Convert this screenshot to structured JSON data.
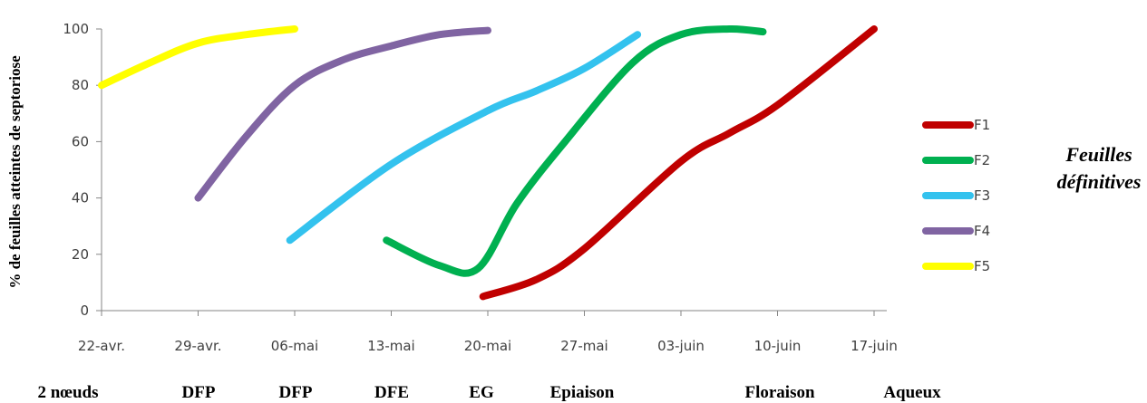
{
  "chart_data": {
    "type": "line",
    "ylabel": "% de feuilles atteintes de septoriose",
    "ylim": [
      0,
      100
    ],
    "yticks": [
      0,
      20,
      40,
      60,
      80,
      100
    ],
    "categories": [
      "22-avr.",
      "29-avr.",
      "06-mai",
      "13-mai",
      "20-mai",
      "27-mai",
      "03-juin",
      "10-juin",
      "17-juin"
    ],
    "stages": [
      "2 nœuds",
      "DFP",
      "DFP",
      "DFE",
      "EG",
      "Epiaison",
      "Floraison",
      "Aqueux"
    ],
    "legend_title": [
      "Feuilles",
      "définitives"
    ],
    "legend_position": "right",
    "series": [
      {
        "name": "F1",
        "color": "#C00000",
        "points": [
          [
            3.95,
            5
          ],
          [
            4.5,
            11
          ],
          [
            5.0,
            22
          ],
          [
            6.0,
            53
          ],
          [
            6.5,
            63
          ],
          [
            7.0,
            73
          ],
          [
            8.0,
            100
          ]
        ]
      },
      {
        "name": "F2",
        "color": "#00B050",
        "points": [
          [
            2.95,
            25
          ],
          [
            3.5,
            16
          ],
          [
            3.9,
            15
          ],
          [
            4.3,
            38
          ],
          [
            4.8,
            60
          ],
          [
            5.5,
            88
          ],
          [
            6.0,
            98
          ],
          [
            6.5,
            100
          ],
          [
            6.85,
            99
          ]
        ]
      },
      {
        "name": "F3",
        "color": "#33C2EE",
        "points": [
          [
            1.95,
            25
          ],
          [
            3.0,
            52
          ],
          [
            4.0,
            71
          ],
          [
            4.5,
            78
          ],
          [
            5.0,
            86
          ],
          [
            5.55,
            98
          ]
        ]
      },
      {
        "name": "F4",
        "color": "#8064A2",
        "points": [
          [
            1.0,
            40
          ],
          [
            1.5,
            62
          ],
          [
            2.0,
            80
          ],
          [
            2.5,
            89
          ],
          [
            3.0,
            94
          ],
          [
            3.5,
            98
          ],
          [
            4.0,
            99.5
          ]
        ]
      },
      {
        "name": "F5",
        "color": "#FFFF00",
        "points": [
          [
            0.0,
            80
          ],
          [
            0.5,
            88
          ],
          [
            1.0,
            95
          ],
          [
            1.5,
            98
          ],
          [
            2.0,
            100
          ]
        ]
      }
    ]
  }
}
